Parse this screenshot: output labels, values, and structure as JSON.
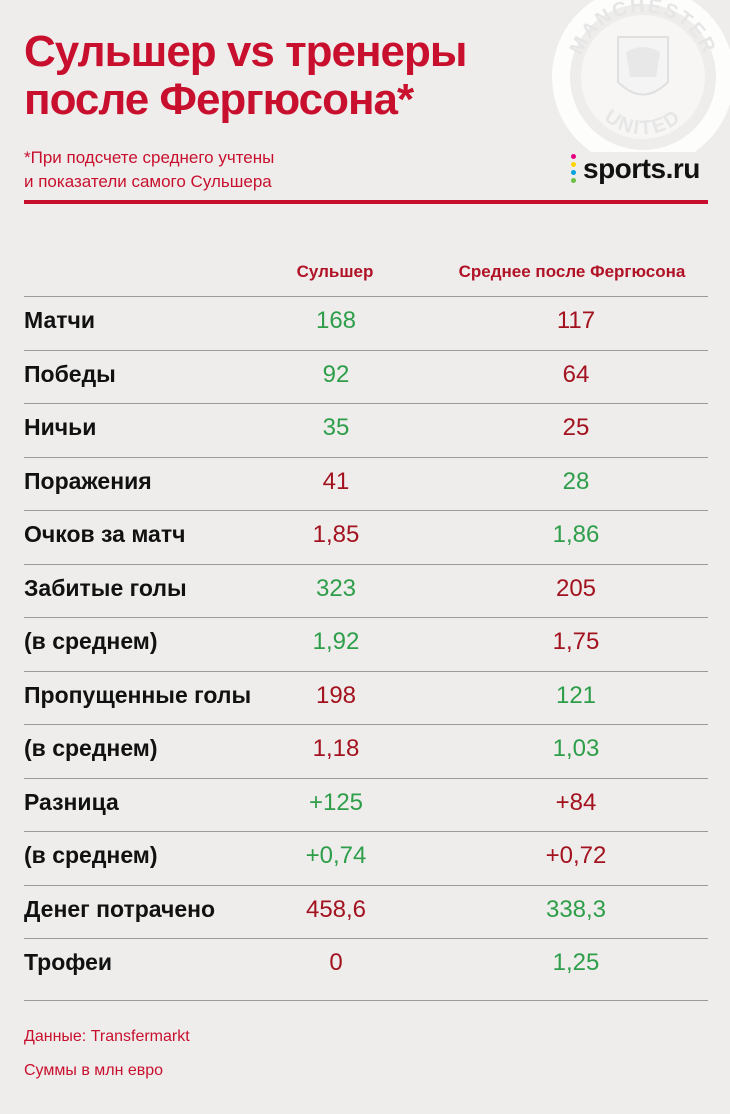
{
  "header": {
    "title_line1": "Сульшер vs тренеры",
    "title_line2": "после Фергюсона*",
    "note_line1": "*При подсчете среднего учтены",
    "note_line2": "и показатели самого Сульшера",
    "logo_text": "sports.ru",
    "crest_top_text": "MANCHESTER",
    "crest_bottom_text": "UNITED"
  },
  "columns": {
    "col1": "Сульшер",
    "col2": "Среднее после Фергюсона"
  },
  "colors": {
    "accent": "#c8102e",
    "better": "#2e9e4a",
    "worse": "#a3121f"
  },
  "rows": [
    {
      "label": "Матчи",
      "v1": "168",
      "v2": "117",
      "c1": "green",
      "c2": "red"
    },
    {
      "label": "Победы",
      "v1": "92",
      "v2": "64",
      "c1": "green",
      "c2": "red"
    },
    {
      "label": "Ничьи",
      "v1": "35",
      "v2": "25",
      "c1": "green",
      "c2": "red"
    },
    {
      "label": "Поражения",
      "v1": "41",
      "v2": "28",
      "c1": "red",
      "c2": "green"
    },
    {
      "label": "Очков за матч",
      "v1": "1,85",
      "v2": "1,86",
      "c1": "red",
      "c2": "green"
    },
    {
      "label": "Забитые голы",
      "v1": "323",
      "v2": "205",
      "c1": "green",
      "c2": "red"
    },
    {
      "label": "(в среднем)",
      "v1": "1,92",
      "v2": "1,75",
      "c1": "green",
      "c2": "red"
    },
    {
      "label": "Пропущенные голы",
      "v1": "198",
      "v2": "121",
      "c1": "red",
      "c2": "green"
    },
    {
      "label": "(в среднем)",
      "v1": "1,18",
      "v2": "1,03",
      "c1": "red",
      "c2": "green"
    },
    {
      "label": "Разница",
      "v1": "+125",
      "v2": "+84",
      "c1": "green",
      "c2": "red"
    },
    {
      "label": "(в среднем)",
      "v1": "+0,74",
      "v2": "+0,72",
      "c1": "green",
      "c2": "red"
    },
    {
      "label": "Денег потрачено",
      "v1": "458,6",
      "v2": "338,3",
      "c1": "red",
      "c2": "green"
    },
    {
      "label": "Трофеи",
      "v1": "0",
      "v2": "1,25",
      "c1": "red",
      "c2": "green"
    }
  ],
  "footer": {
    "source": "Данные: Transfermarkt",
    "units": "Суммы в млн евро"
  }
}
